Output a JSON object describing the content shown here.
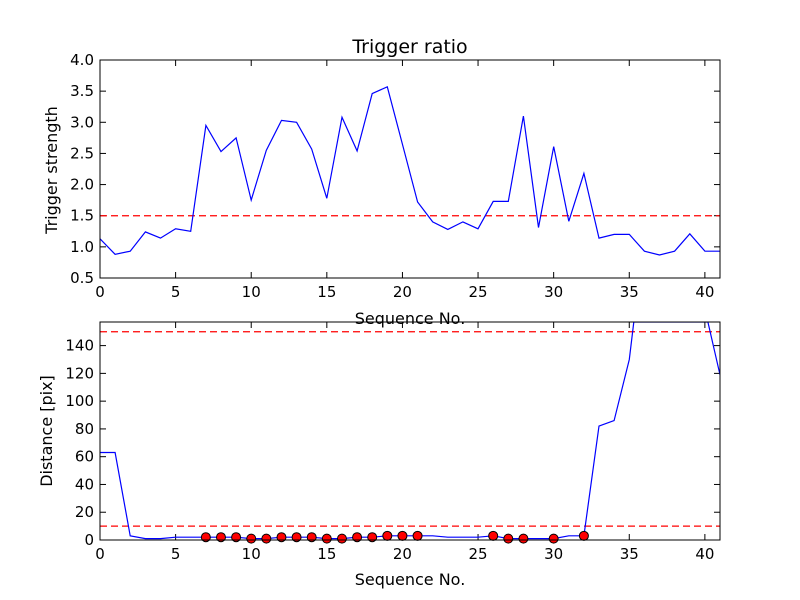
{
  "chart_data": [
    {
      "type": "line",
      "title": "Trigger ratio",
      "xlabel": "Sequence No.",
      "ylabel": "Trigger strength",
      "xlim": [
        0,
        41
      ],
      "ylim": [
        0.5,
        4.0
      ],
      "xticks": [
        "0",
        "5",
        "10",
        "15",
        "20",
        "25",
        "30",
        "35",
        "40"
      ],
      "yticks": [
        "0.5",
        "1.0",
        "1.5",
        "2.0",
        "2.5",
        "3.0",
        "3.5",
        "4.0"
      ],
      "grid": false,
      "series": [
        {
          "color": "#0000ff",
          "x": [
            0,
            1,
            2,
            3,
            4,
            5,
            6,
            7,
            8,
            9,
            10,
            11,
            12,
            13,
            14,
            15,
            16,
            17,
            18,
            19,
            20,
            21,
            22,
            23,
            24,
            25,
            26,
            27,
            28,
            29,
            30,
            31,
            32,
            33,
            34,
            35,
            36,
            37,
            38,
            39,
            40,
            41
          ],
          "values": [
            1.13,
            0.88,
            0.93,
            1.24,
            1.14,
            1.29,
            1.25,
            2.95,
            2.53,
            2.75,
            1.75,
            2.55,
            3.03,
            3.0,
            2.57,
            1.78,
            3.08,
            2.54,
            3.46,
            3.57,
            2.65,
            1.72,
            1.4,
            1.28,
            1.4,
            1.29,
            1.73,
            1.73,
            3.1,
            1.31,
            2.61,
            1.41,
            2.18,
            1.14,
            1.2,
            1.2,
            0.93,
            0.87,
            0.93,
            1.21,
            0.93,
            0.93
          ]
        }
      ],
      "thresholds": [
        1.5
      ],
      "threshold_color": "#ff0000"
    },
    {
      "type": "line",
      "title": "",
      "xlabel": "Sequence No.",
      "ylabel": "Distance [pix]",
      "xlim": [
        0,
        41
      ],
      "ylim": [
        0,
        157
      ],
      "xticks": [
        "0",
        "5",
        "10",
        "15",
        "20",
        "25",
        "30",
        "35",
        "40"
      ],
      "yticks": [
        "0",
        "20",
        "40",
        "60",
        "80",
        "100",
        "120",
        "140"
      ],
      "grid": false,
      "series": [
        {
          "color": "#0000ff",
          "x": [
            0,
            1,
            2,
            3,
            4,
            5,
            6,
            7,
            8,
            9,
            10,
            11,
            12,
            13,
            14,
            15,
            16,
            17,
            18,
            19,
            20,
            21,
            22,
            23,
            24,
            25,
            26,
            27,
            28,
            29,
            30,
            31,
            32,
            33,
            34,
            35,
            35.3,
            40.2,
            41
          ],
          "values": [
            63,
            63,
            3,
            1,
            1,
            2,
            2,
            2,
            2,
            2,
            1,
            1,
            2,
            2,
            2,
            1,
            1,
            2,
            2,
            3,
            3,
            3,
            3,
            2,
            2,
            2,
            3,
            1,
            1,
            1,
            1,
            3,
            3,
            82,
            86,
            130,
            157,
            157,
            119
          ]
        }
      ],
      "markers": {
        "color": "#ff0000",
        "x": [
          7,
          8,
          9,
          10,
          11,
          12,
          13,
          14,
          15,
          16,
          17,
          18,
          19,
          20,
          21,
          26,
          27,
          28,
          30,
          32
        ],
        "values": [
          2,
          2,
          2,
          1,
          1,
          2,
          2,
          2,
          1,
          1,
          2,
          2,
          3,
          3,
          3,
          3,
          1,
          1,
          1,
          3
        ]
      },
      "thresholds": [
        10,
        150
      ],
      "threshold_color": "#ff0000"
    }
  ]
}
